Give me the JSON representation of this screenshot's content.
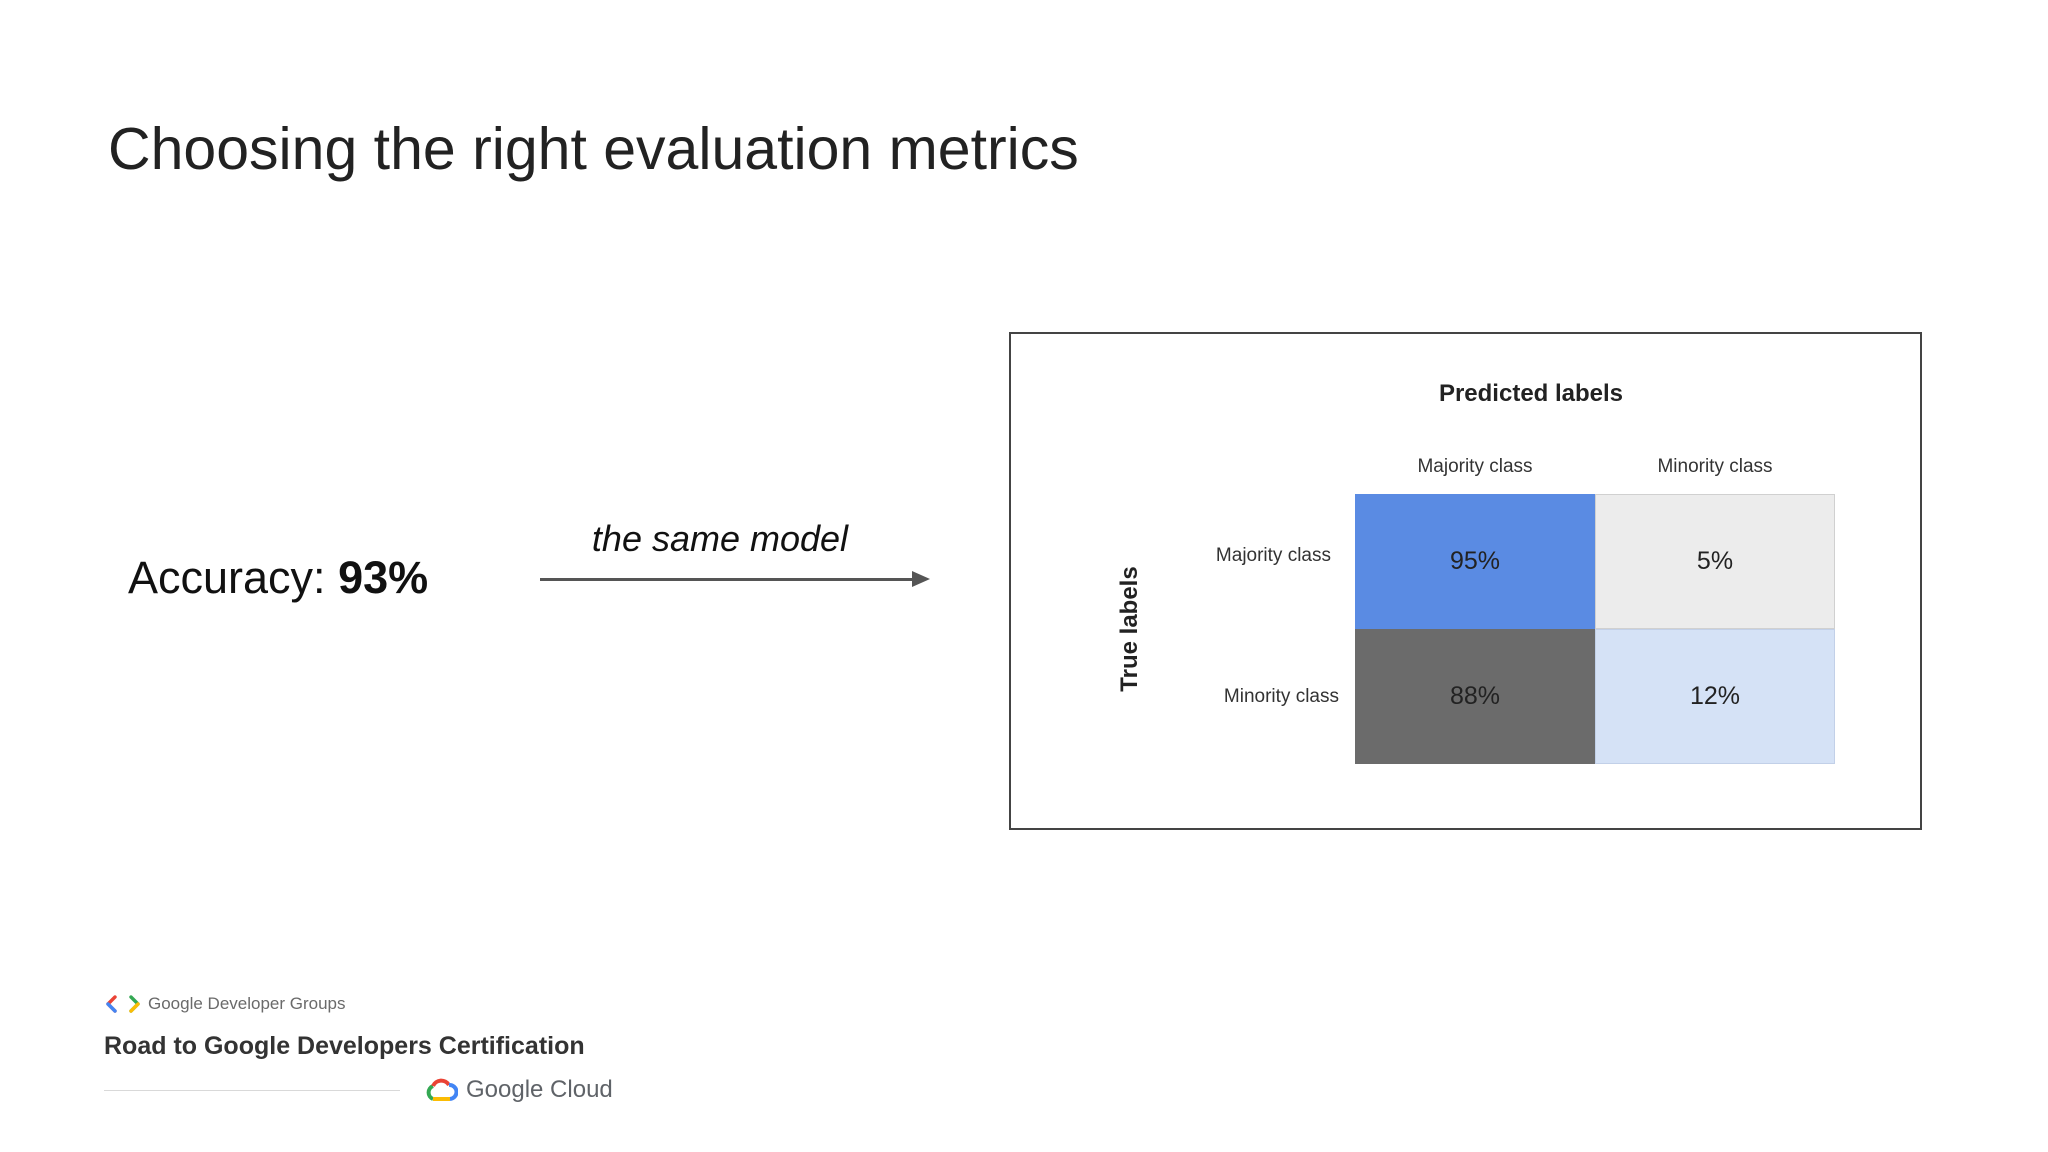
{
  "slide": {
    "title": "Choosing the right evaluation metrics"
  },
  "accuracy": {
    "label": "Accuracy: ",
    "value": "93%"
  },
  "arrow": {
    "caption": "the same model"
  },
  "confusion_matrix": {
    "predicted_title": "Predicted labels",
    "true_title": "True labels",
    "columns": [
      "Majority class",
      "Minority class"
    ],
    "rows": [
      "Majority class",
      "Minority class"
    ],
    "cells": [
      [
        "95%",
        "5%"
      ],
      [
        "88%",
        "12%"
      ]
    ],
    "cell_colors": [
      [
        "#5a8be3",
        "#ececec"
      ],
      [
        "#6b6b6b",
        "#d5e2f6"
      ]
    ]
  },
  "footer": {
    "gdg_label": "Google Developer Groups",
    "program": "Road to Google Developers Certification",
    "cloud_label": "Google Cloud"
  }
}
